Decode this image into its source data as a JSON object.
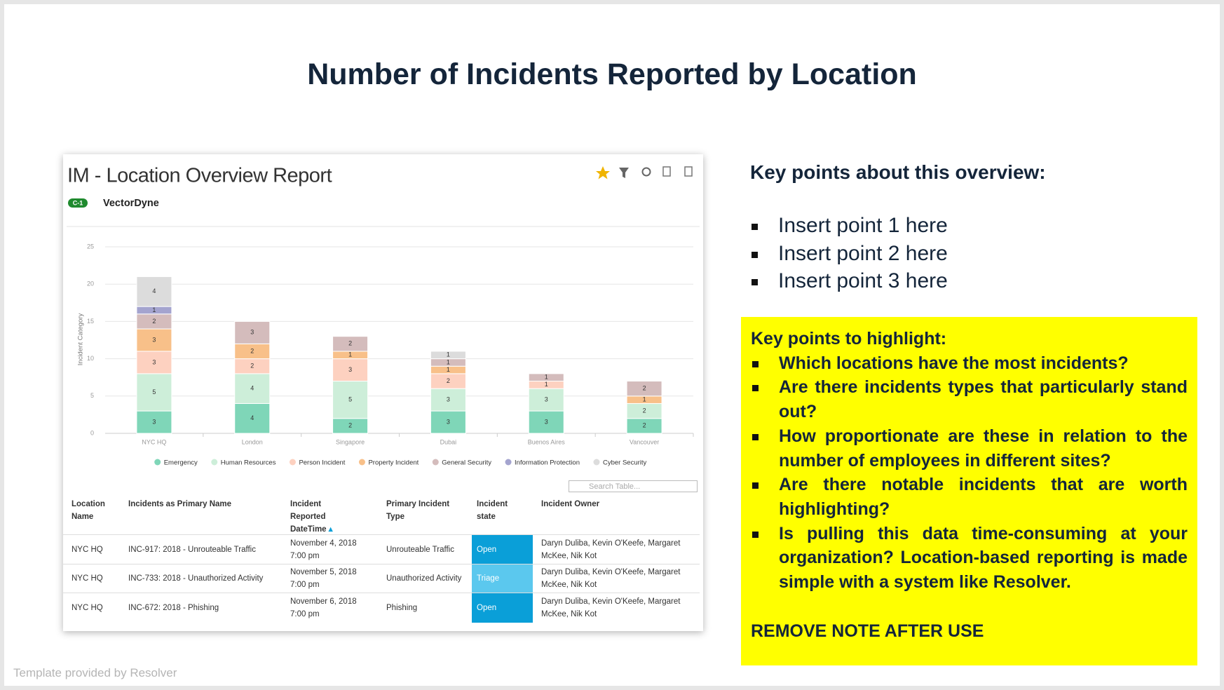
{
  "title": "Number of Incidents Reported by Location",
  "report": {
    "title": "IM - Location Overview Report",
    "badge": "C-1",
    "org": "VectorDyne",
    "search_placeholder": "Search Table..."
  },
  "chart_data": {
    "type": "stacked-bar",
    "y_label": "Incident Category",
    "categories": [
      "NYC HQ",
      "London",
      "Singapore",
      "Dubai",
      "Buenos Aires",
      "Vancouver"
    ],
    "series": [
      {
        "name": "Emergency",
        "color": "#7fd6b8",
        "values": [
          3,
          4,
          2,
          3,
          3,
          2
        ]
      },
      {
        "name": "Human Resources",
        "color": "#cdeed9",
        "values": [
          5,
          4,
          5,
          3,
          3,
          2
        ]
      },
      {
        "name": "Person Incident",
        "color": "#fdd1c0",
        "values": [
          3,
          2,
          3,
          2,
          1,
          null
        ]
      },
      {
        "name": "Property Incident",
        "color": "#f8c089",
        "values": [
          3,
          2,
          1,
          1,
          null,
          1
        ]
      },
      {
        "name": "General Security",
        "color": "#d4bcbc",
        "values": [
          2,
          3,
          2,
          1,
          1,
          2
        ]
      },
      {
        "name": "Information Protection",
        "color": "#a4a4cf",
        "values": [
          1,
          null,
          null,
          null,
          null,
          null
        ]
      },
      {
        "name": "Cyber Security",
        "color": "#dcdcdc",
        "values": [
          4,
          null,
          null,
          1,
          null,
          null
        ]
      }
    ],
    "ylim": [
      0,
      25
    ],
    "yticks": [
      0,
      5,
      10,
      15,
      20,
      25
    ],
    "grid": true
  },
  "table": {
    "headers": [
      "Location Name",
      "Incidents as Primary Name",
      "Incident Reported DateTime",
      "Primary Incident Type",
      "Incident state",
      "Incident Owner"
    ],
    "rows": [
      [
        "NYC HQ",
        "INC-917: 2018 - Unrouteable Traffic",
        "November 4, 2018 7:00 pm",
        "Unrouteable Traffic",
        "Open",
        "Daryn Duliba, Kevin O'Keefe, Margaret McKee, Nik Kot"
      ],
      [
        "NYC HQ",
        "INC-733: 2018 - Unauthorized Activity",
        "November 5, 2018 7:00 pm",
        "Unauthorized Activity",
        "Triage",
        "Daryn Duliba, Kevin O'Keefe, Margaret McKee, Nik Kot"
      ],
      [
        "NYC HQ",
        "INC-672: 2018 - Phishing",
        "November 6, 2018 7:00 pm",
        "Phishing",
        "Open",
        "Daryn Duliba, Kevin O'Keefe, Margaret McKee, Nik Kot"
      ]
    ]
  },
  "overview": {
    "heading": "Key points about this overview:",
    "points": [
      "Insert point 1 here",
      "Insert point 2 here",
      "Insert point 3 here"
    ]
  },
  "highlight": {
    "heading": "Key points to highlight:",
    "points": [
      "Which locations have the most incidents?",
      "Are there incidents types that particularly stand out?",
      "How proportionate are these in relation to the number of employees in different sites?",
      "Are there notable incidents that are worth highlighting?",
      "Is pulling this data time-consuming at your organization? Location-based reporting is made simple with a system like Resolver."
    ],
    "note": "REMOVE NOTE AFTER USE"
  },
  "footer": "Template provided by Resolver"
}
